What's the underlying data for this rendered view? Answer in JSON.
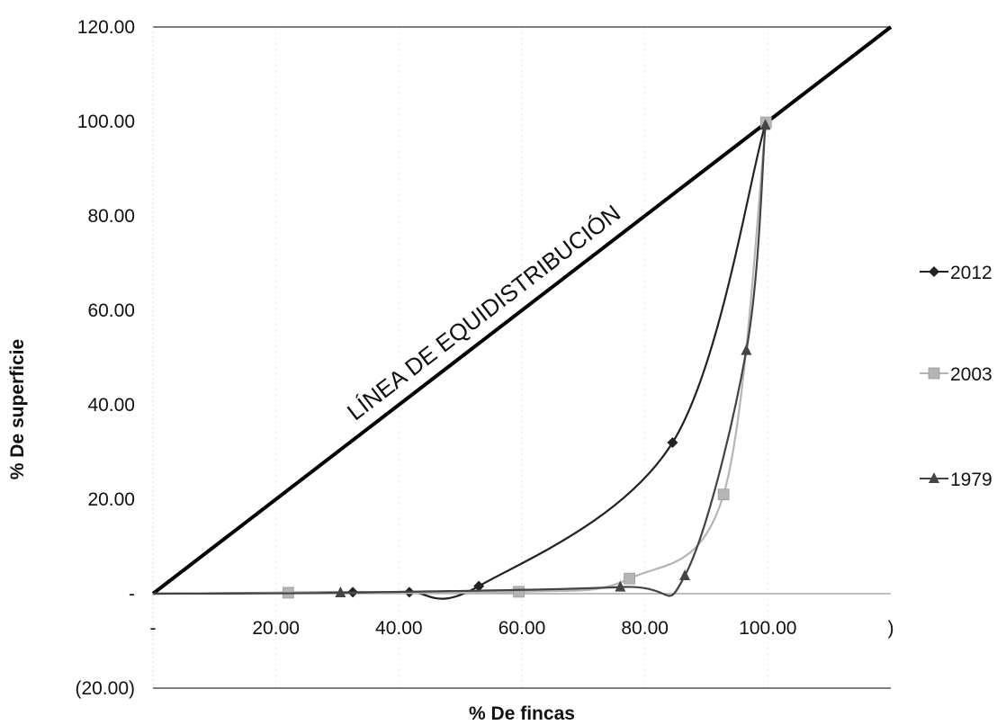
{
  "chart_data": {
    "type": "scatter",
    "title": "",
    "xlabel": "% De fincas",
    "ylabel": "% De superficie",
    "xlim": [
      0,
      120
    ],
    "ylim": [
      -20,
      120
    ],
    "x_ticks": [
      {
        "value": 0,
        "label": "-"
      },
      {
        "value": 20,
        "label": "20.00"
      },
      {
        "value": 40,
        "label": "40.00"
      },
      {
        "value": 60,
        "label": "60.00"
      },
      {
        "value": 80,
        "label": "80.00"
      },
      {
        "value": 100,
        "label": "100.00"
      },
      {
        "value": 120,
        "label": ")"
      }
    ],
    "y_ticks": [
      {
        "value": -20,
        "label": "(20.00)"
      },
      {
        "value": 0,
        "label": "-"
      },
      {
        "value": 20,
        "label": "20.00"
      },
      {
        "value": 40,
        "label": "40.00"
      },
      {
        "value": 60,
        "label": "60.00"
      },
      {
        "value": 80,
        "label": "80.00"
      },
      {
        "value": 100,
        "label": "100.00"
      },
      {
        "value": 120,
        "label": "120.00"
      }
    ],
    "equidistribution_line": {
      "label": "LÍNEA DE EQUIDISTRIBUCIÓN",
      "points": [
        [
          0,
          0
        ],
        [
          120,
          120
        ]
      ]
    },
    "series": [
      {
        "name": "2012",
        "marker": "diamond",
        "color": "#222222",
        "points": [
          [
            32.5,
            0.3
          ],
          [
            41.7,
            0.3
          ],
          [
            53,
            1.6
          ],
          [
            84.5,
            32
          ],
          [
            99.5,
            99
          ]
        ]
      },
      {
        "name": "2003",
        "marker": "square",
        "color": "#b5b5b5",
        "points": [
          [
            22,
            0.2
          ],
          [
            59.5,
            0.4
          ],
          [
            77.5,
            3.2
          ],
          [
            92.8,
            21
          ],
          [
            99.7,
            99.8
          ]
        ]
      },
      {
        "name": "1979",
        "marker": "triangle",
        "color": "#444444",
        "points": [
          [
            30.5,
            0.2
          ],
          [
            76,
            1.4
          ],
          [
            86.5,
            3.8
          ],
          [
            96.5,
            51.5
          ],
          [
            99.6,
            99.2
          ]
        ]
      }
    ],
    "legend": {
      "position": "right",
      "entries": [
        "2012",
        "2003",
        "1979"
      ]
    }
  }
}
